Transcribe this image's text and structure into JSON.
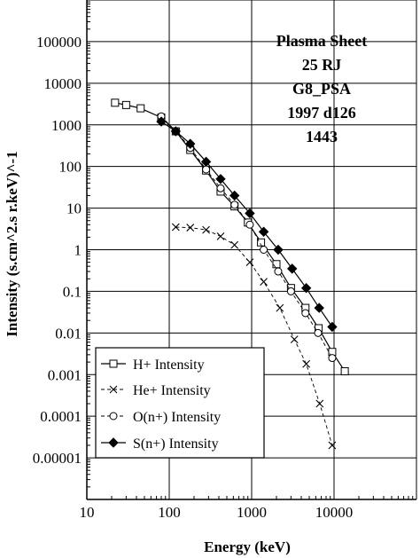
{
  "chart_data": {
    "type": "scatter",
    "title": "",
    "xlabel": "Energy (keV)",
    "ylabel": "Intensity (s.cm^2.s r.keV)^-1",
    "xscale": "log",
    "yscale": "log",
    "xlim": [
      10,
      100000
    ],
    "ylim": [
      1e-06,
      1000000
    ],
    "grid": true,
    "legend_position": "bottom-left",
    "x_tick_labels": [
      {
        "value": 10,
        "label": "10"
      },
      {
        "value": 100,
        "label": "100"
      },
      {
        "value": 1000,
        "label": "1000"
      },
      {
        "value": 10000,
        "label": "10000"
      }
    ],
    "y_tick_labels": [
      {
        "value": 100000,
        "label": "100000"
      },
      {
        "value": 10000,
        "label": "10000"
      },
      {
        "value": 1000,
        "label": "1000"
      },
      {
        "value": 100,
        "label": "100"
      },
      {
        "value": 10,
        "label": "10"
      },
      {
        "value": 1,
        "label": "1"
      },
      {
        "value": 0.1,
        "label": "0.1"
      },
      {
        "value": 0.01,
        "label": "0.01"
      },
      {
        "value": 0.001,
        "label": "0.001"
      },
      {
        "value": 0.0001,
        "label": "0.0001"
      },
      {
        "value": 1e-05,
        "label": "0.00001"
      }
    ],
    "annotation": [
      "Plasma Sheet",
      "25 RJ",
      "G8_PSA",
      "1997 d126",
      "1443"
    ],
    "series": [
      {
        "name": "H+ Intensity",
        "marker": "square-open",
        "line": "solid",
        "x": [
          22,
          30,
          45,
          80,
          120,
          180,
          280,
          420,
          620,
          900,
          1300,
          2000,
          3000,
          4500,
          6500,
          9500,
          13500
        ],
        "y": [
          3400,
          3000,
          2500,
          1500,
          700,
          250,
          80,
          25,
          11,
          4.5,
          1.5,
          0.45,
          0.12,
          0.04,
          0.013,
          0.0035,
          0.0012
        ]
      },
      {
        "name": "He+ Intensity",
        "marker": "x",
        "line": "dashed",
        "x": [
          120,
          180,
          280,
          420,
          620,
          950,
          1400,
          2200,
          3300,
          4600,
          6700,
          9500
        ],
        "y": [
          3.5,
          3.4,
          3.0,
          2.1,
          1.3,
          0.5,
          0.17,
          0.04,
          0.007,
          0.0018,
          0.0002,
          2e-05
        ]
      },
      {
        "name": "O(n+) Intensity",
        "marker": "circle-open",
        "line": "dashed",
        "x": [
          80,
          120,
          180,
          280,
          420,
          620,
          950,
          1400,
          2100,
          3000,
          4500,
          6400,
          9500
        ],
        "y": [
          1600,
          700,
          280,
          85,
          30,
          12,
          4,
          1,
          0.3,
          0.1,
          0.03,
          0.01,
          0.0025
        ]
      },
      {
        "name": "S(n+) Intensity",
        "marker": "diamond-filled",
        "line": "solid",
        "x": [
          80,
          120,
          180,
          280,
          420,
          620,
          950,
          1400,
          2100,
          3100,
          4600,
          6600,
          9500
        ],
        "y": [
          1200,
          700,
          350,
          130,
          50,
          20,
          7.5,
          2.7,
          1,
          0.35,
          0.12,
          0.04,
          0.014
        ]
      }
    ]
  }
}
